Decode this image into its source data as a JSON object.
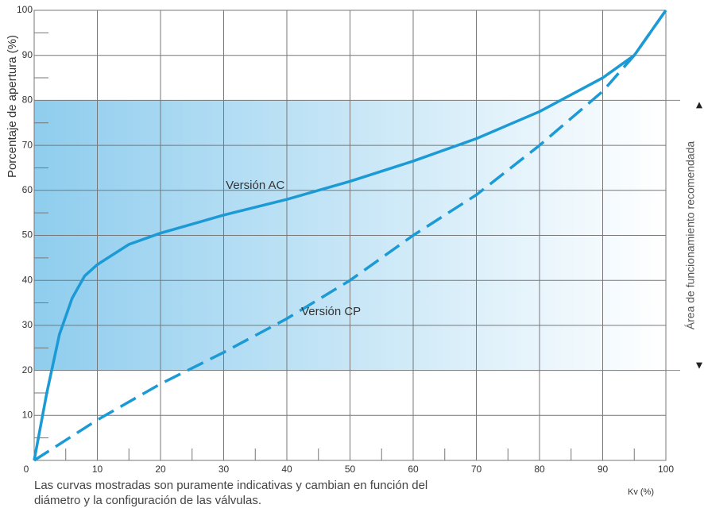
{
  "chart_data": {
    "type": "line",
    "ylabel": "Porcentaje de apertura (%)",
    "xlabel": "Kv (%)",
    "caption": [
      "Las curvas mostradas son puramente indicativas y cambian en función del",
      "diámetro y la configuración de las válvulas."
    ],
    "band": {
      "label": "Área de funcionamiento recomendada",
      "range": [
        20,
        80
      ]
    },
    "xlim": [
      0,
      100
    ],
    "ylim": [
      0,
      100
    ],
    "xticks": [
      0,
      10,
      20,
      30,
      40,
      50,
      60,
      70,
      80,
      90,
      100
    ],
    "yticks": [
      10,
      20,
      30,
      40,
      50,
      60,
      70,
      80,
      90,
      100
    ],
    "xminorticks": [
      5,
      15,
      25,
      35,
      45,
      55,
      65,
      75,
      85,
      95
    ],
    "yminorticks": [
      5,
      15,
      25,
      35,
      45,
      55,
      65,
      75,
      85,
      95
    ],
    "grid": true,
    "series": [
      {
        "name": "Versión AC",
        "color": "#1b9ad6",
        "dash": false,
        "label_at": [
          35,
          61
        ],
        "x": [
          0,
          2,
          4,
          6,
          8,
          10,
          15,
          20,
          30,
          40,
          50,
          60,
          70,
          80,
          90,
          95,
          100
        ],
        "values": [
          0,
          15,
          28,
          36,
          41,
          43.5,
          48,
          50.5,
          54.5,
          58,
          62,
          66.5,
          71.5,
          77.5,
          85,
          90,
          100
        ]
      },
      {
        "name": "Versión CP",
        "color": "#1b9ad6",
        "dash": true,
        "label_at": [
          47,
          33
        ],
        "x": [
          0,
          10,
          20,
          30,
          40,
          50,
          60,
          70,
          80,
          90,
          95,
          100
        ],
        "values": [
          0,
          9,
          17,
          24,
          31.5,
          40,
          50,
          59,
          70,
          82,
          90,
          100
        ]
      }
    ]
  }
}
